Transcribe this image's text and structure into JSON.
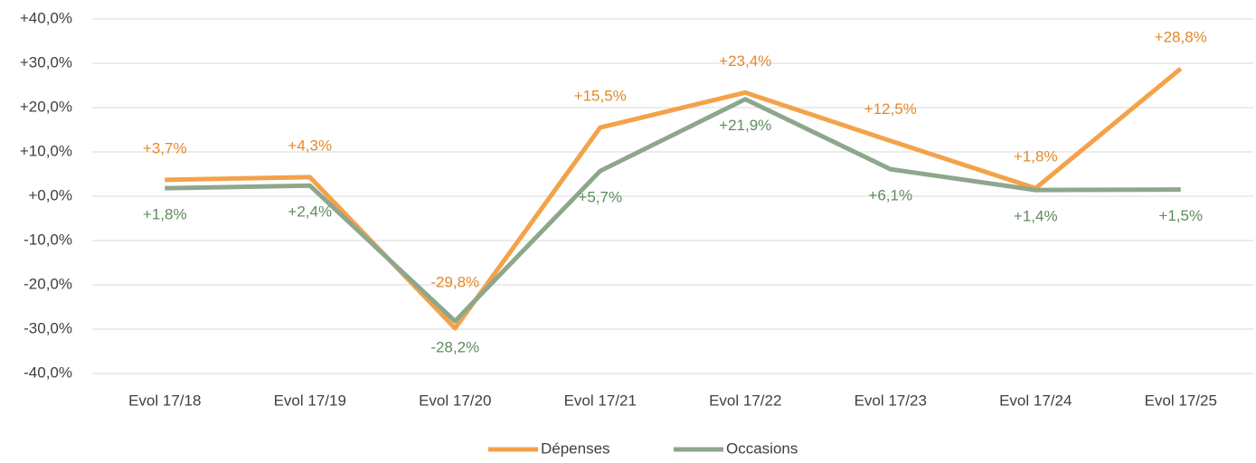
{
  "chart_data": {
    "type": "line",
    "categories": [
      "Evol 17/18",
      "Evol 17/19",
      "Evol 17/20",
      "Evol 17/21",
      "Evol 17/22",
      "Evol 17/23",
      "Evol 17/24",
      "Evol 17/25"
    ],
    "series": [
      {
        "name": "Dépenses",
        "color": "#f4a24a",
        "values": [
          3.7,
          4.3,
          -29.8,
          15.5,
          23.4,
          12.5,
          1.8,
          28.8
        ],
        "value_labels": [
          "+3,7%",
          "+4,3%",
          "-29,8%",
          "+15,5%",
          "+23,4%",
          "+12,5%",
          "+1,8%",
          "+28,8%"
        ]
      },
      {
        "name": "Occasions",
        "color": "#8ea78c",
        "values": [
          1.8,
          2.4,
          -28.2,
          5.7,
          21.9,
          6.1,
          1.4,
          1.5
        ],
        "value_labels": [
          "+1,8%",
          "+2,4%",
          "-28,2%",
          "+5,7%",
          "+21,9%",
          "+6,1%",
          "+1,4%",
          "+1,5%"
        ]
      }
    ],
    "ylim": [
      -40,
      40
    ],
    "yticks": [
      {
        "value": -40,
        "label": "-40,0%"
      },
      {
        "value": -30,
        "label": "-30,0%"
      },
      {
        "value": -20,
        "label": "-20,0%"
      },
      {
        "value": -10,
        "label": "-10,0%"
      },
      {
        "value": 0,
        "label": "+0,0%"
      },
      {
        "value": 10,
        "label": "+10,0%"
      },
      {
        "value": 20,
        "label": "+20,0%"
      },
      {
        "value": 30,
        "label": "+30,0%"
      },
      {
        "value": 40,
        "label": "+40,0%"
      }
    ],
    "grid": true,
    "legend": "bottom"
  }
}
